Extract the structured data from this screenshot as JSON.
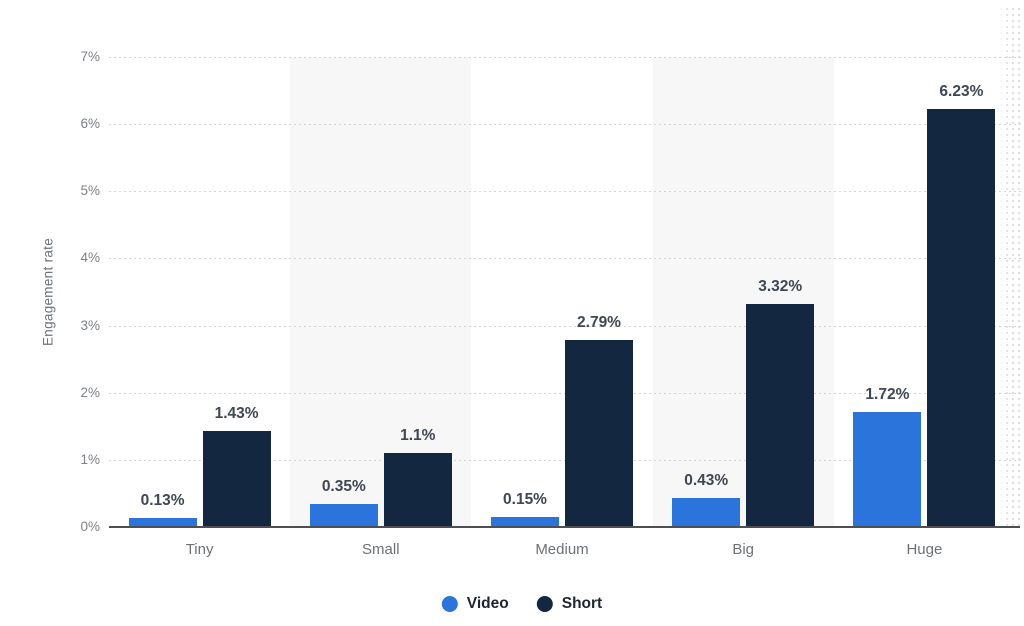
{
  "chart_data": {
    "type": "bar",
    "title": "",
    "xlabel": "",
    "ylabel": "Engagement rate",
    "categories": [
      "Tiny",
      "Small",
      "Medium",
      "Big",
      "Huge"
    ],
    "series": [
      {
        "name": "Video",
        "color": "#2a74dc",
        "values": [
          0.13,
          0.35,
          0.15,
          0.43,
          1.72
        ],
        "value_labels": [
          "0.13%",
          "0.35%",
          "0.15%",
          "0.43%",
          "1.72%"
        ]
      },
      {
        "name": "Short",
        "color": "#132840",
        "values": [
          1.43,
          1.1,
          2.79,
          3.32,
          6.23
        ],
        "value_labels": [
          "1.43%",
          "1.1%",
          "2.79%",
          "3.32%",
          "6.23%"
        ]
      }
    ],
    "y_ticks": [
      "0%",
      "1%",
      "2%",
      "3%",
      "4%",
      "5%",
      "6%",
      "7%"
    ],
    "ylim": [
      0,
      7
    ],
    "grid": "horizontal-dotted",
    "plot_bands_on_categories": [
      "Small",
      "Big"
    ],
    "legend_position": "bottom"
  },
  "legend": {
    "items": [
      {
        "label": "Video",
        "color": "#2a74dc"
      },
      {
        "label": "Short",
        "color": "#132840"
      }
    ]
  },
  "colors": {
    "video_blue": "#2a74dc",
    "short_navy": "#132840"
  }
}
